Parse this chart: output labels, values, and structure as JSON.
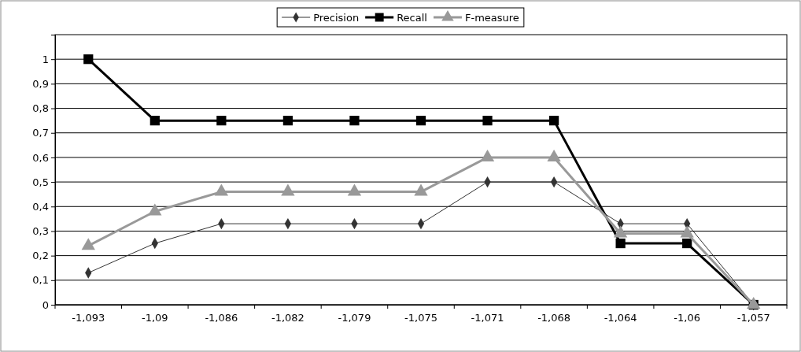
{
  "chart_data": {
    "type": "line",
    "categories": [
      "-1,093",
      "-1,09",
      "-1,086",
      "-1,082",
      "-1,079",
      "-1,075",
      "-1,071",
      "-1,068",
      "-1,064",
      "-1,06",
      "-1,057"
    ],
    "series": [
      {
        "name": "Precision",
        "color": "#333333",
        "marker": "diamond",
        "values": [
          0.13,
          0.25,
          0.33,
          0.33,
          0.33,
          0.33,
          0.5,
          0.5,
          0.33,
          0.33,
          0
        ]
      },
      {
        "name": "Recall",
        "color": "#000000",
        "marker": "square",
        "values": [
          1,
          0.75,
          0.75,
          0.75,
          0.75,
          0.75,
          0.75,
          0.75,
          0.25,
          0.25,
          0
        ]
      },
      {
        "name": "F-measure",
        "color": "#999999",
        "marker": "triangle",
        "values": [
          0.24,
          0.38,
          0.46,
          0.46,
          0.46,
          0.46,
          0.6,
          0.6,
          0.29,
          0.29,
          0
        ]
      }
    ],
    "ylim": [
      0,
      1.1
    ],
    "yticks": [
      0,
      {
        "value": 0.1,
        "label": "0,1"
      },
      {
        "value": 0.2,
        "label": "0,2"
      },
      {
        "value": 0.3,
        "label": "0,3"
      },
      {
        "value": 0.4,
        "label": "0,4"
      },
      {
        "value": 0.5,
        "label": "0,5"
      },
      {
        "value": 0.6,
        "label": "0,6"
      },
      {
        "value": 0.7,
        "label": "0,7"
      },
      {
        "value": 0.8,
        "label": "0,8"
      },
      {
        "value": 0.9,
        "label": "0,9"
      },
      1
    ],
    "grid": "y",
    "legend": "top"
  }
}
